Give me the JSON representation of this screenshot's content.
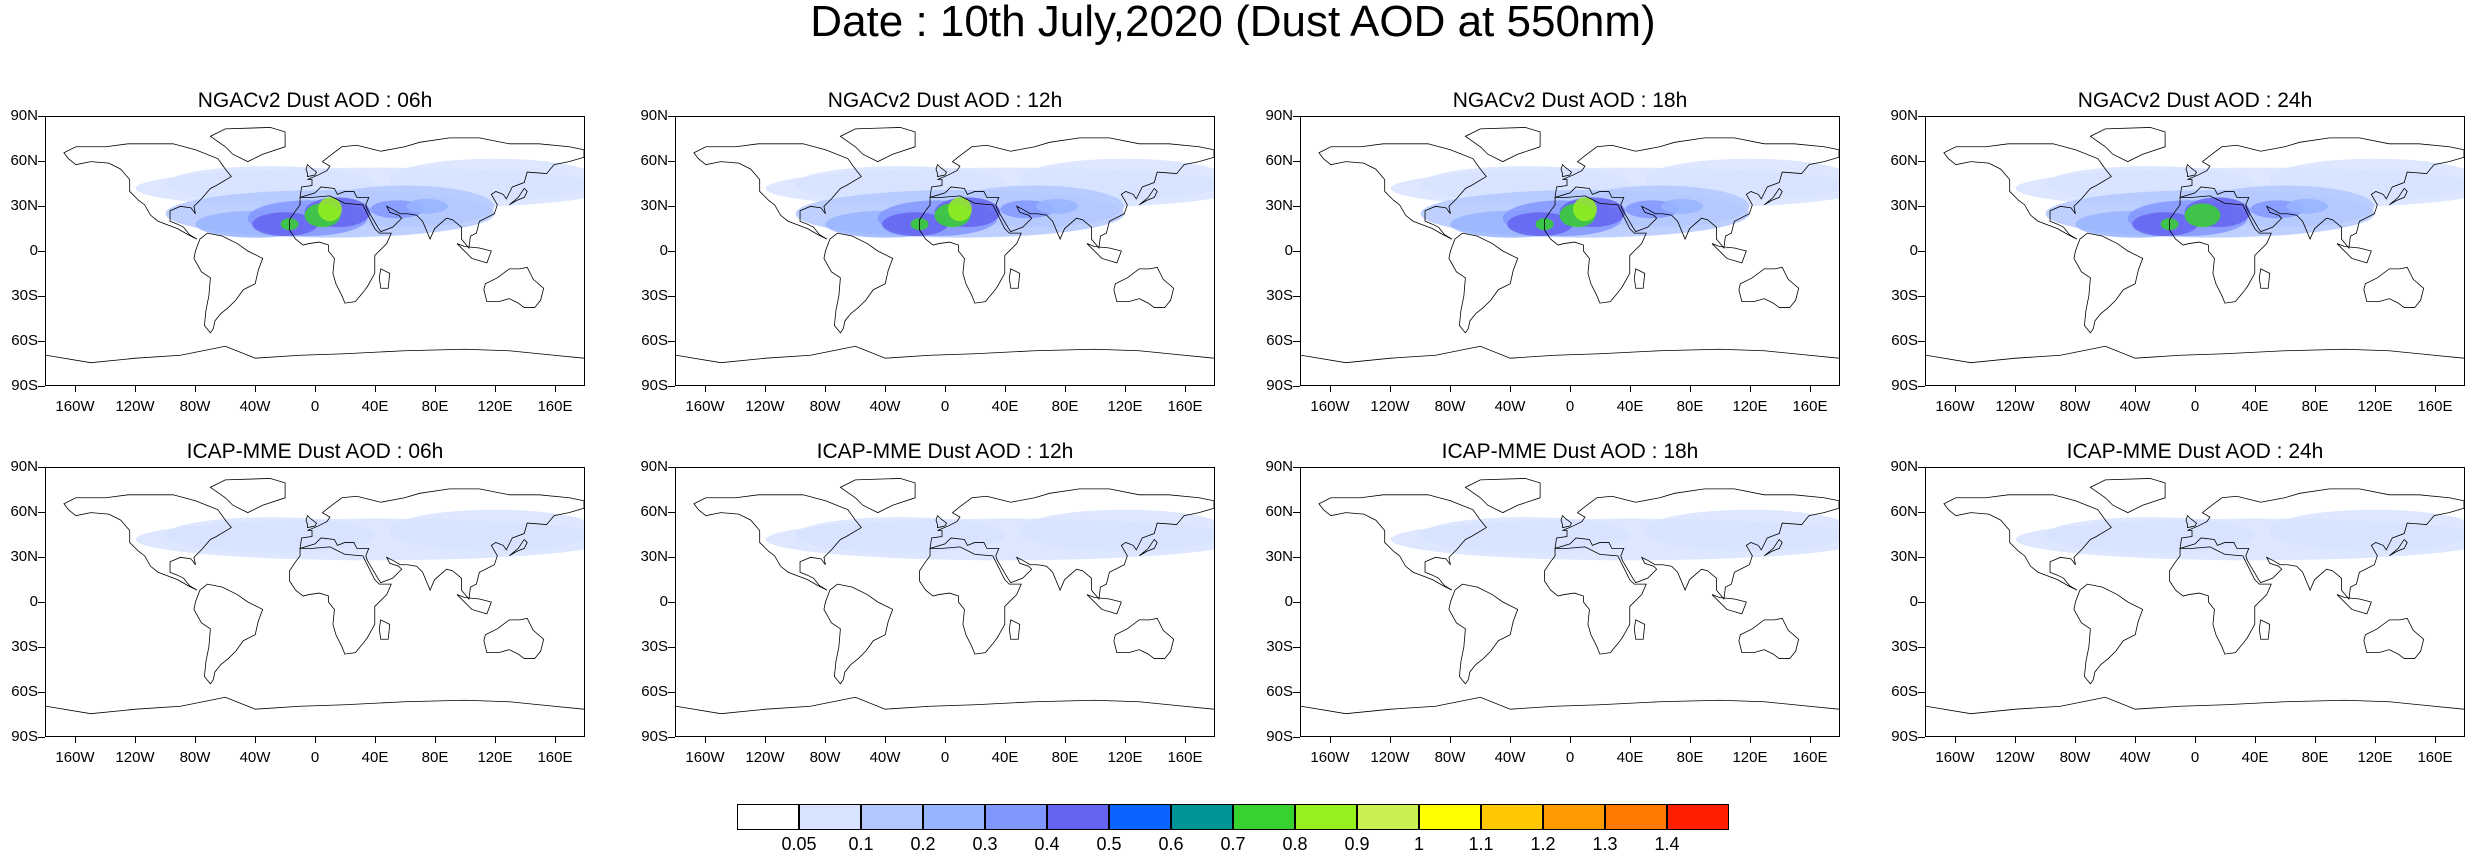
{
  "title": "Date : 10th July,2020 (Dust AOD at 550nm)",
  "panels": [
    {
      "title": "NGACv2 Dust AOD : 06h",
      "model": "NGACv2",
      "hour": "06h",
      "intensity": 1.0
    },
    {
      "title": "NGACv2 Dust AOD : 12h",
      "model": "NGACv2",
      "hour": "12h",
      "intensity": 1.05
    },
    {
      "title": "NGACv2 Dust AOD : 18h",
      "model": "NGACv2",
      "hour": "18h",
      "intensity": 1.0
    },
    {
      "title": "NGACv2 Dust AOD : 24h",
      "model": "NGACv2",
      "hour": "24h",
      "intensity": 0.95
    },
    {
      "title": "ICAP-MME Dust AOD : 06h",
      "model": "ICAP-MME",
      "hour": "06h",
      "intensity": 0.7
    },
    {
      "title": "ICAP-MME Dust AOD : 12h",
      "model": "ICAP-MME",
      "hour": "12h",
      "intensity": 0.68
    },
    {
      "title": "ICAP-MME Dust AOD : 18h",
      "model": "ICAP-MME",
      "hour": "18h",
      "intensity": 0.65
    },
    {
      "title": "ICAP-MME Dust AOD : 24h",
      "model": "ICAP-MME",
      "hour": "24h",
      "intensity": 0.66
    }
  ],
  "lat_labels": [
    "90N",
    "60N",
    "30N",
    "0",
    "30S",
    "60S",
    "90S"
  ],
  "lon_labels": [
    "160W",
    "120W",
    "80W",
    "40W",
    "0",
    "40E",
    "80E",
    "120E",
    "160E"
  ],
  "colorbar": {
    "levels": [
      "0.05",
      "0.1",
      "0.2",
      "0.3",
      "0.4",
      "0.5",
      "0.6",
      "0.7",
      "0.8",
      "0.9",
      "1",
      "1.1",
      "1.2",
      "1.3",
      "1.4"
    ],
    "colors": [
      "#ffffff",
      "#d7e3ff",
      "#b4c8ff",
      "#96b4ff",
      "#8296ff",
      "#6464f0",
      "#0a64ff",
      "#009696",
      "#37d22d",
      "#96f01e",
      "#c8f050",
      "#ffff00",
      "#ffc800",
      "#ff9b00",
      "#ff7800",
      "#ff1e00"
    ]
  }
}
